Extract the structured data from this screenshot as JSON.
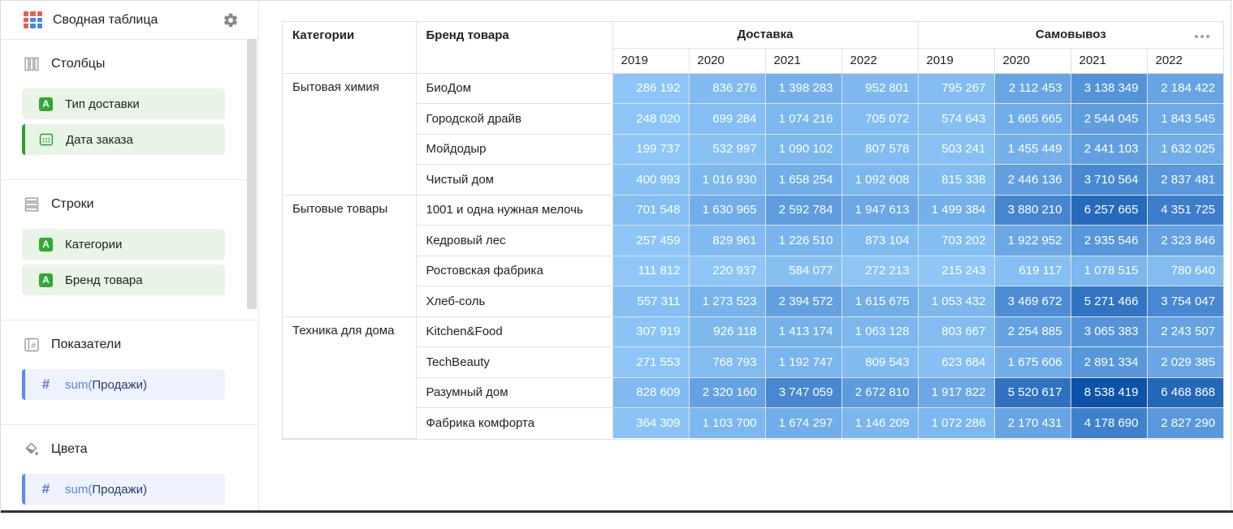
{
  "icons": {
    "letter_a": "A",
    "hash": "#"
  },
  "sidebar": {
    "title": "Сводная таблица",
    "sections": [
      {
        "label": "Столбцы",
        "items": [
          {
            "label": "Тип доставки"
          },
          {
            "label": "Дата заказа"
          }
        ]
      },
      {
        "label": "Строки",
        "items": [
          {
            "label": "Категории"
          },
          {
            "label": "Бренд товара"
          }
        ]
      },
      {
        "label": "Показатели",
        "items": [
          {
            "fn": "sum(",
            "field": "Продажи)"
          }
        ]
      },
      {
        "label": "Цвета",
        "items": [
          {
            "fn": "sum(",
            "field": "Продажи)"
          }
        ]
      }
    ]
  },
  "table": {
    "corner_headers": [
      "Категории",
      "Бренд товара"
    ],
    "groups": [
      {
        "label": "Доставка",
        "years": [
          "2019",
          "2020",
          "2021",
          "2022"
        ]
      },
      {
        "label": "Самовывоз",
        "years": [
          "2019",
          "2020",
          "2021",
          "2022"
        ]
      }
    ],
    "heatmap_stops": [
      "#8FC8F8",
      "#3D7ECC",
      "#0B53A7"
    ],
    "rows": [
      {
        "category": "Бытовая химия",
        "category_span": 4,
        "brand": "БиоДом",
        "values": [
          286192,
          836276,
          1398283,
          952801,
          795267,
          2112453,
          3138349,
          2184422
        ]
      },
      {
        "brand": "Городской драйв",
        "values": [
          248020,
          699284,
          1074216,
          705072,
          574643,
          1665665,
          2544045,
          1843545
        ]
      },
      {
        "brand": "Мойдодыр",
        "values": [
          199737,
          532997,
          1090102,
          807578,
          503241,
          1455449,
          2441103,
          1632025
        ]
      },
      {
        "brand": "Чистый дом",
        "values": [
          400993,
          1016930,
          1658254,
          1092608,
          815338,
          2446136,
          3710564,
          2837481
        ]
      },
      {
        "category": "Бытовые товары",
        "category_span": 4,
        "brand": "1001 и одна нужная мелочь",
        "values": [
          701548,
          1630965,
          2592784,
          1947613,
          1499384,
          3880210,
          6257665,
          4351725
        ]
      },
      {
        "brand": "Кедровый лес",
        "values": [
          257459,
          829961,
          1226510,
          873104,
          703202,
          1922952,
          2935546,
          2323846
        ]
      },
      {
        "brand": "Ростовская фабрика",
        "values": [
          111812,
          220937,
          584077,
          272213,
          215243,
          619117,
          1078515,
          780640
        ]
      },
      {
        "brand": "Хлеб-соль",
        "values": [
          557311,
          1273523,
          2394572,
          1615675,
          1053432,
          3469672,
          5271466,
          3754047
        ]
      },
      {
        "category": "Техника для дома",
        "category_span": 4,
        "brand": "Kitchen&Food",
        "values": [
          307919,
          926118,
          1413174,
          1063128,
          803667,
          2254885,
          3065383,
          2243507
        ]
      },
      {
        "brand": "TechBeauty",
        "values": [
          271553,
          768793,
          1192747,
          809543,
          623684,
          1675606,
          2891334,
          2029385
        ]
      },
      {
        "brand": "Разумный дом",
        "values": [
          828609,
          2320160,
          3747059,
          2672810,
          1917822,
          5520617,
          8538419,
          6468868
        ]
      },
      {
        "brand": "Фабрика комфорта",
        "values": [
          364309,
          1103700,
          1674297,
          1146209,
          1072286,
          2170431,
          4178690,
          2827290
        ]
      }
    ]
  }
}
